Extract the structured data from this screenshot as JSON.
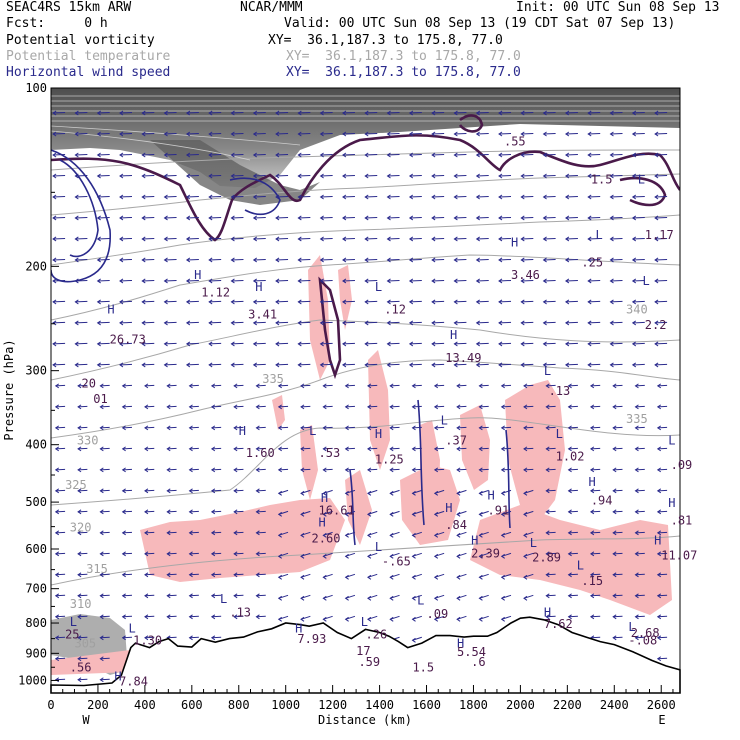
{
  "header": {
    "model": "SEAC4RS 15km ARW",
    "org": "NCAR/MMM",
    "init": "Init: 00 UTC Sun 08 Sep 13",
    "fcst": "Fcst:     0 h",
    "valid": "Valid: 00 UTC Sun 08 Sep 13 (19 CDT Sat 07 Sep 13)"
  },
  "legend": [
    {
      "label": "Potential vorticity",
      "xy": "XY=  36.1,187.3 to 175.8, 77.0",
      "color": "#000000"
    },
    {
      "label": "Potential temperature",
      "xy": "XY=  36.1,187.3 to 175.8, 77.0",
      "color": "#a8a8a8"
    },
    {
      "label": "Horizontal wind speed",
      "xy": "XY=  36.1,187.3 to 175.8, 77.0",
      "color": "#2a2a8c"
    }
  ],
  "chart_data": {
    "type": "cross-section",
    "xlabel": "Distance (km)",
    "ylabel": "Pressure (hPa)",
    "xlim": [
      0,
      2680
    ],
    "ylim": [
      1050,
      100
    ],
    "y_scale": "log",
    "x_ticks": [
      "0",
      "200",
      "400",
      "600",
      "800",
      "1000",
      "1200",
      "1400",
      "1600",
      "1800",
      "2000",
      "2200",
      "2400",
      "2600"
    ],
    "y_ticks": [
      "100",
      "200",
      "300",
      "400",
      "500",
      "600",
      "700",
      "800",
      "900",
      "1000"
    ],
    "end_labels": {
      "left": "W",
      "right": "E"
    },
    "theta_contours": [
      {
        "label": "305",
        "x": 100,
        "p": 880
      },
      {
        "label": "310",
        "x": 80,
        "p": 755
      },
      {
        "label": "315",
        "x": 150,
        "p": 658
      },
      {
        "label": "320",
        "x": 80,
        "p": 560
      },
      {
        "label": "325",
        "x": 60,
        "p": 475
      },
      {
        "label": "330",
        "x": 110,
        "p": 400
      },
      {
        "label": "335",
        "x": 900,
        "p": 315
      },
      {
        "label": "340",
        "x": 2450,
        "p": 240
      },
      {
        "label": "335",
        "x": 2450,
        "p": 368
      }
    ],
    "pv_labels": [
      {
        "text": "L",
        "x": 80,
        "p": 810
      },
      {
        "text": "25",
        "x": 60,
        "p": 850
      },
      {
        "text": "H",
        "x": 240,
        "p": 240
      },
      {
        "text": "26.73",
        "x": 250,
        "p": 270
      },
      {
        "text": "20",
        "x": 130,
        "p": 320
      },
      {
        "text": "01",
        "x": 180,
        "p": 340
      },
      {
        "text": "H",
        "x": 610,
        "p": 210
      },
      {
        "text": "1.12",
        "x": 640,
        "p": 225
      },
      {
        "text": "H",
        "x": 870,
        "p": 220
      },
      {
        "text": "3.41",
        "x": 840,
        "p": 245
      },
      {
        "text": "H",
        "x": 800,
        "p": 385
      },
      {
        "text": "1.60",
        "x": 830,
        "p": 420
      },
      {
        "text": "L",
        "x": 1100,
        "p": 385
      },
      {
        "text": ".53",
        "x": 1140,
        "p": 420
      },
      {
        "text": "H",
        "x": 1380,
        "p": 390
      },
      {
        "text": "1.25",
        "x": 1380,
        "p": 430
      },
      {
        "text": "L",
        "x": 1380,
        "p": 220
      },
      {
        "text": ".12",
        "x": 1420,
        "p": 240
      },
      {
        "text": "H",
        "x": 1700,
        "p": 265
      },
      {
        "text": "13.49",
        "x": 1680,
        "p": 290
      },
      {
        "text": "L",
        "x": 1660,
        "p": 370
      },
      {
        "text": ".37",
        "x": 1680,
        "p": 400
      },
      {
        "text": ".55",
        "x": 1930,
        "p": 125
      },
      {
        "text": "H",
        "x": 1960,
        "p": 185
      },
      {
        "text": "3.46",
        "x": 1960,
        "p": 210
      },
      {
        "text": "L",
        "x": 2150,
        "p": 390
      },
      {
        "text": "1.02",
        "x": 2150,
        "p": 425
      },
      {
        "text": "L",
        "x": 2100,
        "p": 305
      },
      {
        "text": ".13",
        "x": 2120,
        "p": 330
      },
      {
        "text": "L",
        "x": 2320,
        "p": 180
      },
      {
        "text": ".25",
        "x": 2260,
        "p": 200
      },
      {
        "text": "1.5",
        "x": 2300,
        "p": 145
      },
      {
        "text": "L",
        "x": 2500,
        "p": 145
      },
      {
        "text": "1.17",
        "x": 2530,
        "p": 180
      },
      {
        "text": "L",
        "x": 2520,
        "p": 215
      },
      {
        "text": "2.2",
        "x": 2530,
        "p": 255
      },
      {
        "text": "H",
        "x": 1150,
        "p": 500
      },
      {
        "text": "16.61",
        "x": 1140,
        "p": 525
      },
      {
        "text": "H",
        "x": 1140,
        "p": 550
      },
      {
        "text": "2.60",
        "x": 1110,
        "p": 585
      },
      {
        "text": "H",
        "x": 1680,
        "p": 520
      },
      {
        "text": ".84",
        "x": 1680,
        "p": 555
      },
      {
        "text": "H",
        "x": 1860,
        "p": 495
      },
      {
        "text": ".91",
        "x": 1860,
        "p": 525
      },
      {
        "text": "H",
        "x": 2290,
        "p": 470
      },
      {
        "text": ".94",
        "x": 2300,
        "p": 505
      },
      {
        "text": "L",
        "x": 1380,
        "p": 605
      },
      {
        "text": "-.65",
        "x": 1410,
        "p": 640
      },
      {
        "text": "H",
        "x": 1790,
        "p": 590
      },
      {
        "text": "2.39",
        "x": 1790,
        "p": 620
      },
      {
        "text": "L",
        "x": 2040,
        "p": 595
      },
      {
        "text": "2.89",
        "x": 2050,
        "p": 630
      },
      {
        "text": "L",
        "x": 2240,
        "p": 650
      },
      {
        "text": ".15",
        "x": 2260,
        "p": 690
      },
      {
        "text": "H",
        "x": 2570,
        "p": 590
      },
      {
        "text": "11.07",
        "x": 2600,
        "p": 625
      },
      {
        "text": "L",
        "x": 2630,
        "p": 400
      },
      {
        "text": ".09",
        "x": 2640,
        "p": 440
      },
      {
        "text": "H",
        "x": 2630,
        "p": 510
      },
      {
        "text": ".81",
        "x": 2640,
        "p": 545
      },
      {
        "text": "L",
        "x": 720,
        "p": 740
      },
      {
        "text": ".13",
        "x": 760,
        "p": 780
      },
      {
        "text": "L",
        "x": 1560,
        "p": 745
      },
      {
        "text": ".09",
        "x": 1600,
        "p": 785
      },
      {
        "text": "H",
        "x": 2100,
        "p": 780
      },
      {
        "text": "7.62",
        "x": 2100,
        "p": 815
      },
      {
        "text": "L",
        "x": 2460,
        "p": 825
      },
      {
        "text": "2.68",
        "x": 2470,
        "p": 845
      },
      {
        "text": "-.08",
        "x": 2460,
        "p": 870
      },
      {
        "text": "L",
        "x": 330,
        "p": 830
      },
      {
        "text": "1.30",
        "x": 350,
        "p": 870
      },
      {
        "text": "H",
        "x": 1040,
        "p": 830
      },
      {
        "text": "7.93",
        "x": 1050,
        "p": 865
      },
      {
        "text": "L",
        "x": 1320,
        "p": 810
      },
      {
        "text": ".26",
        "x": 1340,
        "p": 850
      },
      {
        "text": "17",
        "x": 1300,
        "p": 905
      },
      {
        "text": ".59",
        "x": 1310,
        "p": 945
      },
      {
        "text": "H",
        "x": 1730,
        "p": 880
      },
      {
        "text": "5.54",
        "x": 1730,
        "p": 910
      },
      {
        "text": "1.5",
        "x": 1540,
        "p": 965
      },
      {
        "text": ".6",
        "x": 1790,
        "p": 945
      },
      {
        "text": ".56",
        "x": 80,
        "p": 965
      },
      {
        "text": "H",
        "x": 270,
        "p": 1000
      },
      {
        "text": "7.84",
        "x": 290,
        "p": 1020
      }
    ],
    "terrain": [
      [
        0,
        1018
      ],
      [
        140,
        1020
      ],
      [
        260,
        1010
      ],
      [
        300,
        980
      ],
      [
        340,
        880
      ],
      [
        360,
        865
      ],
      [
        420,
        880
      ],
      [
        460,
        860
      ],
      [
        500,
        850
      ],
      [
        540,
        875
      ],
      [
        600,
        878
      ],
      [
        640,
        850
      ],
      [
        700,
        862
      ],
      [
        760,
        850
      ],
      [
        820,
        845
      ],
      [
        880,
        828
      ],
      [
        940,
        818
      ],
      [
        1000,
        800
      ],
      [
        1060,
        805
      ],
      [
        1100,
        810
      ],
      [
        1160,
        800
      ],
      [
        1220,
        830
      ],
      [
        1280,
        850
      ],
      [
        1340,
        820
      ],
      [
        1400,
        830
      ],
      [
        1440,
        842
      ],
      [
        1480,
        860
      ],
      [
        1520,
        880
      ],
      [
        1580,
        865
      ],
      [
        1640,
        840
      ],
      [
        1700,
        840
      ],
      [
        1760,
        845
      ],
      [
        1800,
        842
      ],
      [
        1860,
        842
      ],
      [
        1900,
        830
      ],
      [
        1960,
        800
      ],
      [
        2000,
        785
      ],
      [
        2040,
        782
      ],
      [
        2100,
        790
      ],
      [
        2160,
        805
      ],
      [
        2220,
        830
      ],
      [
        2280,
        845
      ],
      [
        2340,
        860
      ],
      [
        2400,
        870
      ],
      [
        2480,
        895
      ],
      [
        2560,
        925
      ],
      [
        2620,
        945
      ],
      [
        2680,
        960
      ]
    ]
  }
}
